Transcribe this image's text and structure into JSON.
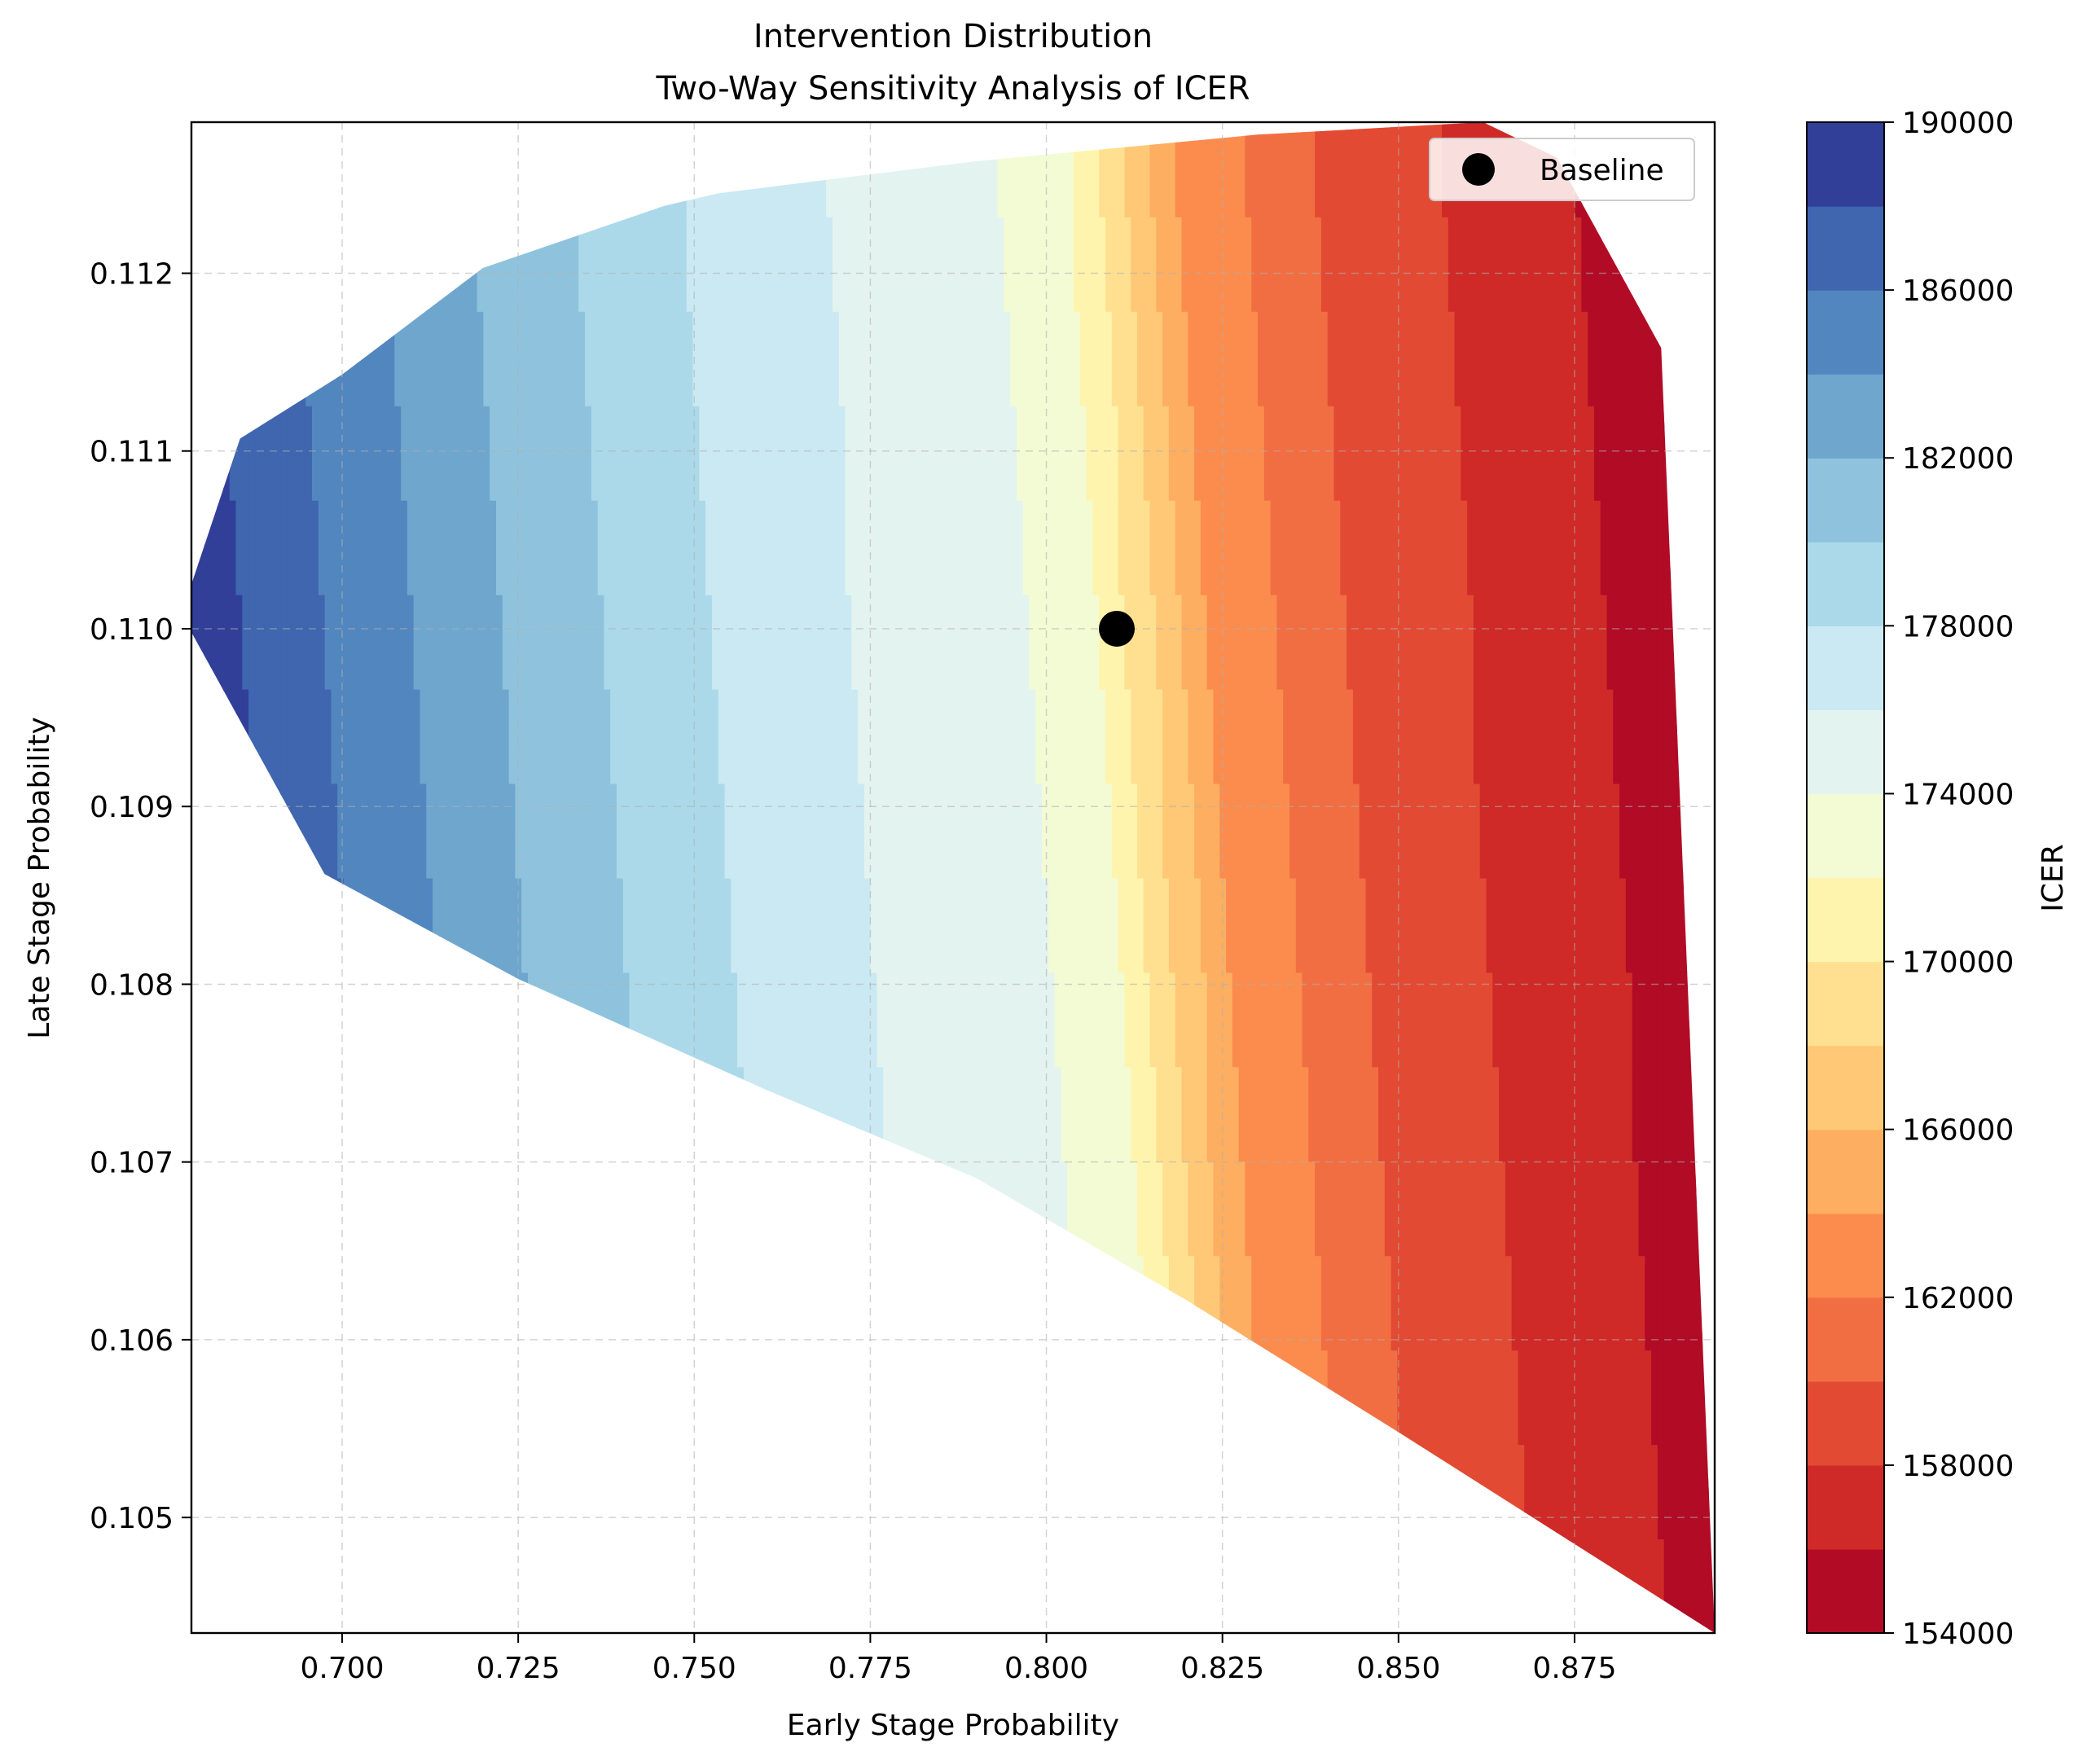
{
  "chart_data": {
    "type": "heatmap",
    "subtype": "filled-contour",
    "title": "Intervention Distribution",
    "subtitle": "Two-Way Sensitivity Analysis of ICER",
    "xlabel": "Early Stage Probability",
    "ylabel": "Late Stage Probability",
    "xlim": [
      0.6786,
      0.8949
    ],
    "ylim": [
      0.10435,
      0.11285
    ],
    "x_ticks": [
      "0.700",
      "0.725",
      "0.750",
      "0.775",
      "0.800",
      "0.825",
      "0.850",
      "0.875"
    ],
    "x_tick_values": [
      0.7,
      0.725,
      0.75,
      0.775,
      0.8,
      0.825,
      0.85,
      0.875
    ],
    "y_ticks": [
      "0.105",
      "0.106",
      "0.107",
      "0.108",
      "0.109",
      "0.110",
      "0.111",
      "0.112"
    ],
    "y_tick_values": [
      0.105,
      0.106,
      0.107,
      0.108,
      0.109,
      0.11,
      0.111,
      0.112
    ],
    "grid": true,
    "colormap": "RdYlBu",
    "colorbar": {
      "label": "ICER",
      "ticks": [
        "154000",
        "158000",
        "162000",
        "166000",
        "170000",
        "174000",
        "178000",
        "182000",
        "186000",
        "190000"
      ],
      "tick_values": [
        154000,
        158000,
        162000,
        166000,
        170000,
        174000,
        178000,
        182000,
        186000,
        190000
      ],
      "levels": [
        154000,
        156000,
        158000,
        160000,
        162000,
        164000,
        166000,
        168000,
        170000,
        172000,
        174000,
        176000,
        178000,
        180000,
        182000,
        184000,
        186000,
        188000,
        190000
      ],
      "colors": [
        "#b10b26",
        "#cf2a27",
        "#e34a33",
        "#f16e43",
        "#fb8c4e",
        "#fdae61",
        "#fec877",
        "#fee090",
        "#fff4ad",
        "#f3fbd4",
        "#e3f4f0",
        "#cbe9f2",
        "#abd9e9",
        "#8fc3dd",
        "#6ea6ce",
        "#5286bf",
        "#3f66ae",
        "#313f99"
      ]
    },
    "icer_model": {
      "x": [
        0.6786,
        0.7,
        0.725,
        0.75,
        0.775,
        0.8,
        0.81,
        0.825,
        0.85,
        0.875,
        0.8949
      ],
      "icer": [
        189600,
        186000,
        182000,
        178500,
        176000,
        174000,
        172000,
        164000,
        159000,
        157000,
        154000
      ]
    },
    "region": [
      [
        0.6786,
        0.11025
      ],
      [
        0.6855,
        0.11107
      ],
      [
        0.7,
        0.11143
      ],
      [
        0.72,
        0.11203
      ],
      [
        0.7458,
        0.11238
      ],
      [
        0.7535,
        0.11245
      ],
      [
        0.79,
        0.11263
      ],
      [
        0.83,
        0.11278
      ],
      [
        0.862,
        0.11285
      ],
      [
        0.8725,
        0.11265
      ],
      [
        0.8873,
        0.11158
      ],
      [
        0.8949,
        0.10435
      ],
      [
        0.85,
        0.10548
      ],
      [
        0.82,
        0.10622
      ],
      [
        0.79,
        0.10691
      ],
      [
        0.76,
        0.10741
      ],
      [
        0.725,
        0.10803
      ],
      [
        0.6975,
        0.10862
      ],
      [
        0.6786,
        0.10998
      ]
    ],
    "legend": {
      "position": "top-right",
      "entries": [
        "Baseline"
      ]
    },
    "baseline": {
      "label": "Baseline",
      "x": 0.81,
      "y": 0.11,
      "color": "#000000"
    }
  }
}
